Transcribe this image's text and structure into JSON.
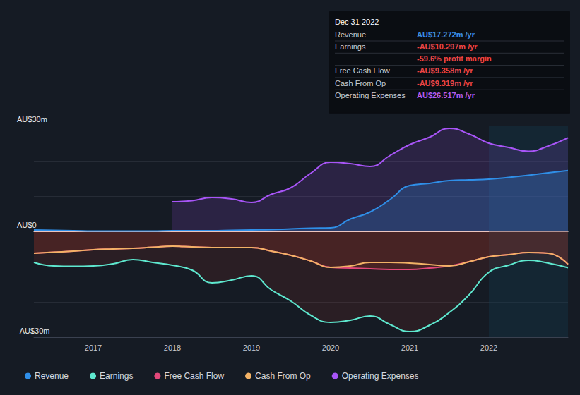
{
  "chart_data": {
    "type": "line",
    "x": [
      2016.25,
      2016.5,
      2016.75,
      2017,
      2017.25,
      2017.5,
      2017.75,
      2018,
      2018.25,
      2018.5,
      2018.75,
      2019,
      2019.25,
      2019.5,
      2019.75,
      2020,
      2020.25,
      2020.5,
      2020.75,
      2021,
      2021.25,
      2021.5,
      2021.75,
      2022,
      2022.25,
      2022.5,
      2022.75,
      2023
    ],
    "xlim": [
      2016.25,
      2023
    ],
    "xticks": [
      2017,
      2018,
      2019,
      2020,
      2021,
      2022
    ],
    "ylim": [
      -30,
      30
    ],
    "yticks": [
      {
        "value": -30,
        "label": "-AU$30m"
      },
      {
        "value": 0,
        "label": "AU$0"
      },
      {
        "value": 30,
        "label": "AU$30m"
      }
    ],
    "grid": true,
    "legend": "bottom-left",
    "series": [
      {
        "name": "Revenue",
        "color": "#2f8fe8",
        "values": [
          0.4,
          0.3,
          0.2,
          0.1,
          0.1,
          0.1,
          0.1,
          0.2,
          0.2,
          0.2,
          0.3,
          0.4,
          0.5,
          0.7,
          0.9,
          1.0,
          3.5,
          5.5,
          9.0,
          13.0,
          13.6,
          14.4,
          14.6,
          14.8,
          15.3,
          15.9,
          16.6,
          17.272
        ]
      },
      {
        "name": "Earnings",
        "color": "#5ee8cf",
        "values": [
          -8.8,
          -9.8,
          -9.9,
          -9.8,
          -9.2,
          -8.0,
          -8.8,
          -9.6,
          -11.0,
          -14.6,
          -13.8,
          -12.6,
          -16.6,
          -19.8,
          -23.8,
          -25.8,
          -25.2,
          -24.0,
          -26.4,
          -28.4,
          -26.6,
          -23.0,
          -18.0,
          -11.6,
          -9.6,
          -8.2,
          -9.0,
          -10.297
        ]
      },
      {
        "name": "Free Cash Flow",
        "color": "#e2487a",
        "values": [
          -6.2,
          -5.9,
          -5.6,
          -5.2,
          -5.0,
          -4.8,
          -4.5,
          -4.2,
          -4.4,
          -4.6,
          -4.6,
          -4.6,
          -5.6,
          -6.8,
          -8.4,
          -10.2,
          -10.4,
          -10.6,
          -10.8,
          -10.8,
          -10.4,
          -9.8,
          -8.6,
          -7.2,
          -6.6,
          -6.0,
          -6.2,
          -9.358
        ]
      },
      {
        "name": "Cash From Op",
        "color": "#f2b266",
        "values": [
          -6.2,
          -5.9,
          -5.6,
          -5.2,
          -5.0,
          -4.8,
          -4.5,
          -4.2,
          -4.4,
          -4.6,
          -4.6,
          -4.6,
          -5.6,
          -6.8,
          -8.4,
          -10.2,
          -9.8,
          -8.8,
          -8.8,
          -9.0,
          -9.4,
          -9.8,
          -8.6,
          -7.2,
          -6.6,
          -6.0,
          -6.2,
          -9.319
        ]
      },
      {
        "name": "Operating Expenses",
        "color": "#a855f7",
        "values": [
          null,
          null,
          null,
          null,
          null,
          null,
          null,
          8.4,
          8.7,
          9.6,
          9.2,
          8.2,
          10.5,
          12.4,
          16.5,
          19.6,
          19.2,
          18.4,
          21.5,
          24.6,
          26.7,
          29.2,
          27.6,
          25.0,
          23.8,
          22.7,
          24.2,
          26.517
        ]
      }
    ],
    "info_box": {
      "title": "Dec 31 2022",
      "rows": [
        {
          "label": "Revenue",
          "value": "AU$17.272m /yr",
          "color": "#3d8ee6"
        },
        {
          "label": "Earnings",
          "value": "-AU$10.297m /yr",
          "color": "#ef4444"
        },
        {
          "value": "-59.6% profit margin",
          "color": "#ef4444"
        },
        {
          "label": "Free Cash Flow",
          "value": "-AU$9.358m /yr",
          "color": "#ef4444"
        },
        {
          "label": "Cash From Op",
          "value": "-AU$9.319m /yr",
          "color": "#ef4444"
        },
        {
          "label": "Operating Expenses",
          "value": "AU$26.517m /yr",
          "color": "#b35cf0"
        }
      ]
    }
  }
}
